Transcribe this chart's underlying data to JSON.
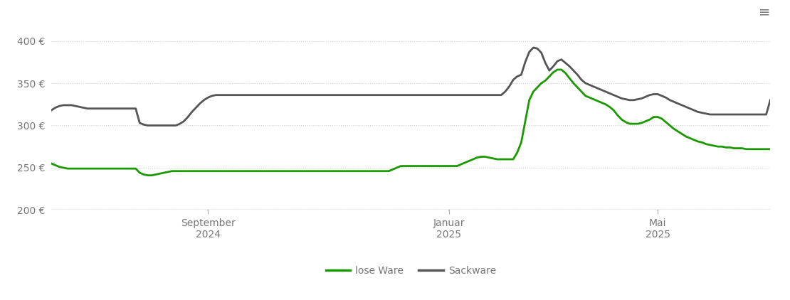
{
  "background_color": "#ffffff",
  "grid_color": "#d0d0d0",
  "ylim": [
    200,
    420
  ],
  "yticks": [
    200,
    250,
    300,
    350,
    400
  ],
  "line_lose_ware_color": "#1a9900",
  "line_sackware_color": "#555555",
  "line_width": 2.0,
  "legend_labels": [
    "lose Ware",
    "Sackware"
  ],
  "lose_ware": [
    255,
    253,
    251,
    250,
    249,
    249,
    249,
    249,
    249,
    249,
    249,
    249,
    249,
    249,
    249,
    249,
    249,
    249,
    249,
    249,
    249,
    249,
    244,
    242,
    241,
    241,
    242,
    243,
    244,
    245,
    246,
    246,
    246,
    246,
    246,
    246,
    246,
    246,
    246,
    246,
    246,
    246,
    246,
    246,
    246,
    246,
    246,
    246,
    246,
    246,
    246,
    246,
    246,
    246,
    246,
    246,
    246,
    246,
    246,
    246,
    246,
    246,
    246,
    246,
    246,
    246,
    246,
    246,
    246,
    246,
    246,
    246,
    246,
    246,
    246,
    246,
    246,
    246,
    246,
    246,
    246,
    246,
    246,
    246,
    246,
    248,
    250,
    252,
    252,
    252,
    252,
    252,
    252,
    252,
    252,
    252,
    252,
    252,
    252,
    252,
    252,
    252,
    254,
    256,
    258,
    260,
    262,
    263,
    263,
    262,
    261,
    260,
    260,
    260,
    260,
    260,
    268,
    280,
    305,
    330,
    340,
    345,
    350,
    353,
    358,
    363,
    366,
    366,
    362,
    356,
    350,
    345,
    340,
    335,
    333,
    331,
    329,
    327,
    325,
    322,
    318,
    312,
    307,
    304,
    302,
    302,
    302,
    303,
    305,
    307,
    310,
    310,
    308,
    304,
    300,
    296,
    293,
    290,
    287,
    285,
    283,
    281,
    280,
    278,
    277,
    276,
    275,
    275,
    274,
    274,
    273,
    273,
    273,
    272,
    272,
    272,
    272,
    272,
    272,
    272
  ],
  "sackware": [
    318,
    321,
    323,
    324,
    324,
    324,
    323,
    322,
    321,
    320,
    320,
    320,
    320,
    320,
    320,
    320,
    320,
    320,
    320,
    320,
    320,
    320,
    303,
    301,
    300,
    300,
    300,
    300,
    300,
    300,
    300,
    300,
    302,
    305,
    310,
    316,
    321,
    326,
    330,
    333,
    335,
    336,
    336,
    336,
    336,
    336,
    336,
    336,
    336,
    336,
    336,
    336,
    336,
    336,
    336,
    336,
    336,
    336,
    336,
    336,
    336,
    336,
    336,
    336,
    336,
    336,
    336,
    336,
    336,
    336,
    336,
    336,
    336,
    336,
    336,
    336,
    336,
    336,
    336,
    336,
    336,
    336,
    336,
    336,
    336,
    336,
    336,
    336,
    336,
    336,
    336,
    336,
    336,
    336,
    336,
    336,
    336,
    336,
    336,
    336,
    336,
    336,
    336,
    336,
    336,
    336,
    336,
    336,
    336,
    336,
    336,
    336,
    336,
    340,
    346,
    354,
    358,
    360,
    375,
    387,
    392,
    391,
    386,
    374,
    365,
    370,
    376,
    378,
    374,
    370,
    365,
    360,
    354,
    350,
    348,
    346,
    344,
    342,
    340,
    338,
    336,
    334,
    332,
    331,
    330,
    330,
    331,
    332,
    334,
    336,
    337,
    337,
    335,
    333,
    330,
    328,
    326,
    324,
    322,
    320,
    318,
    316,
    315,
    314,
    313,
    313,
    313,
    313,
    313,
    313,
    313,
    313,
    313,
    313,
    313,
    313,
    313,
    313,
    313,
    330
  ],
  "n_points": 180,
  "x_tick_positions_ratio": [
    0.222,
    0.556,
    0.844
  ],
  "x_tick_labels": [
    "September\n2024",
    "Januar\n2025",
    "Mai\n2025"
  ]
}
